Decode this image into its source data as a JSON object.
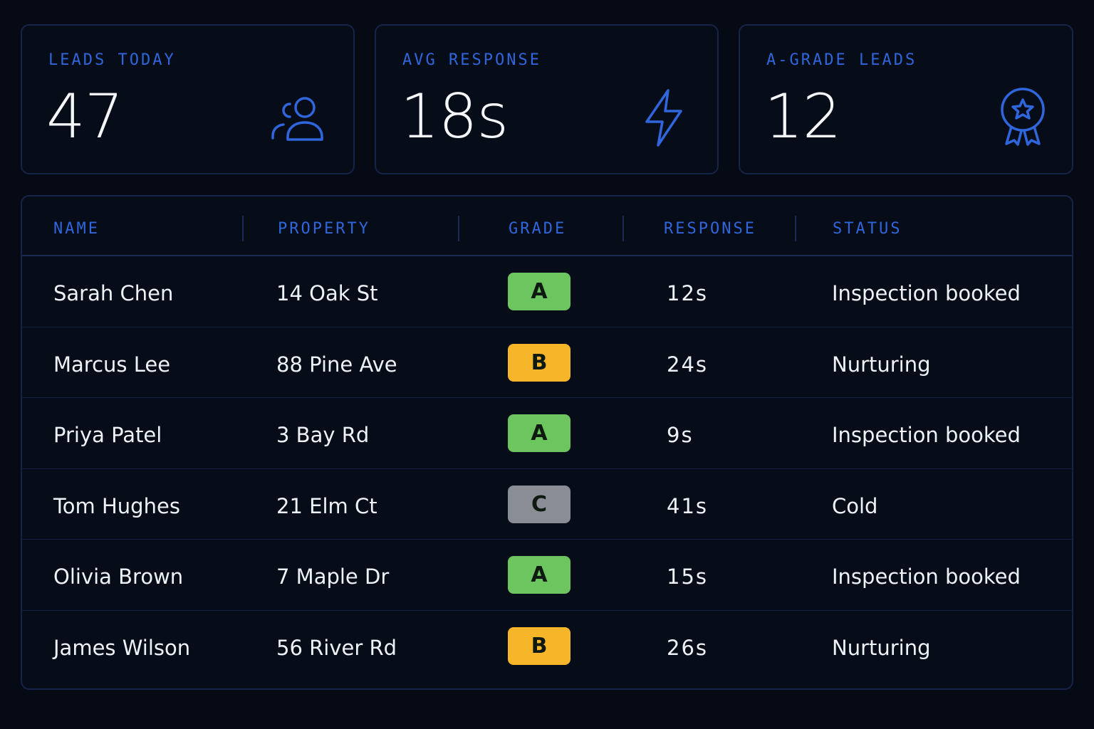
{
  "stats": [
    {
      "label": "LEADS TODAY",
      "value": "47",
      "icon": "users-icon"
    },
    {
      "label": "AVG RESPONSE",
      "value": "18s",
      "icon": "lightning-icon"
    },
    {
      "label": "A-GRADE LEADS",
      "value": "12",
      "icon": "award-ribbon-icon"
    }
  ],
  "table": {
    "headers": {
      "name": "NAME",
      "property": "PROPERTY",
      "grade": "GRADE",
      "response": "RESPONSE",
      "status": "STATUS"
    },
    "rows": [
      {
        "name": "Sarah Chen",
        "property": "14 Oak St",
        "grade": "A",
        "response": "12s",
        "status": "Inspection booked"
      },
      {
        "name": "Marcus Lee",
        "property": "88 Pine Ave",
        "grade": "B",
        "response": "24s",
        "status": "Nurturing"
      },
      {
        "name": "Priya Patel",
        "property": "3 Bay Rd",
        "grade": "A",
        "response": "9s",
        "status": "Inspection booked"
      },
      {
        "name": "Tom Hughes",
        "property": "21 Elm Ct",
        "grade": "C",
        "response": "41s",
        "status": "Cold"
      },
      {
        "name": "Olivia Brown",
        "property": "7 Maple Dr",
        "grade": "A",
        "response": "15s",
        "status": "Inspection booked"
      },
      {
        "name": "James Wilson",
        "property": "56 River Rd",
        "grade": "B",
        "response": "26s",
        "status": "Nurturing"
      }
    ]
  },
  "colors": {
    "background": "#060a14",
    "accent": "#2f66dc",
    "grade_A": "#6cc55f",
    "grade_B": "#f7b52a",
    "grade_C": "#8a8d96"
  }
}
